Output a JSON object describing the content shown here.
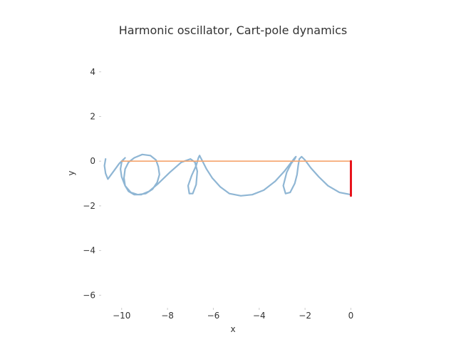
{
  "chart_data": {
    "type": "line",
    "title": "Harmonic oscillator, Cart-pole dynamics",
    "xlabel": "x",
    "ylabel": "y",
    "xlim": [
      -10.8,
      0.7
    ],
    "ylim": [
      -6.5,
      5.3
    ],
    "xticks": [
      -10,
      -8,
      -6,
      -4,
      -2,
      0
    ],
    "yticks": [
      -6,
      -4,
      -2,
      0,
      2,
      4
    ],
    "tick_labels_x": [
      "−10",
      "−8",
      "−6",
      "−4",
      "−2",
      "0"
    ],
    "tick_labels_y": [
      "−6",
      "−4",
      "−2",
      "0",
      "2",
      "4"
    ],
    "grid": false,
    "series": [
      {
        "role": "trajectory",
        "color": "#8fb6d4",
        "x": [
          0.0,
          -0.5,
          -1.0,
          -1.4,
          -1.75,
          -2.0,
          -2.15,
          -2.25,
          -2.3,
          -2.35,
          -2.45,
          -2.65,
          -2.85,
          -2.95,
          -2.8,
          -2.6,
          -2.45,
          -2.4,
          -2.45,
          -2.6,
          -2.9,
          -3.3,
          -3.8,
          -4.3,
          -4.8,
          -5.3,
          -5.7,
          -6.05,
          -6.3,
          -6.45,
          -6.55,
          -6.6,
          -6.65,
          -6.75,
          -6.95,
          -7.1,
          -7.05,
          -6.9,
          -6.75,
          -6.7,
          -6.8,
          -7.0,
          -7.4,
          -7.9,
          -8.4,
          -8.8,
          -9.15,
          -9.45,
          -9.7,
          -9.85,
          -9.9,
          -9.85,
          -9.7,
          -9.45,
          -9.1,
          -8.75,
          -8.5,
          -8.4,
          -8.35,
          -8.45,
          -8.65,
          -8.95,
          -9.3,
          -9.6,
          -9.85,
          -10.0,
          -10.05,
          -10.0,
          -9.9,
          -9.85,
          -9.9,
          -10.1,
          -10.35,
          -10.6,
          -10.7,
          -10.75,
          -10.7
        ],
        "y": [
          -1.5,
          -1.4,
          -1.1,
          -0.7,
          -0.3,
          0.05,
          0.2,
          0.1,
          -0.2,
          -0.6,
          -1.0,
          -1.4,
          -1.45,
          -1.1,
          -0.5,
          -0.1,
          0.1,
          0.2,
          0.15,
          -0.05,
          -0.45,
          -0.9,
          -1.3,
          -1.5,
          -1.55,
          -1.45,
          -1.15,
          -0.75,
          -0.35,
          -0.05,
          0.15,
          0.25,
          0.15,
          -0.2,
          -0.65,
          -1.1,
          -1.45,
          -1.45,
          -1.05,
          -0.45,
          -0.05,
          0.1,
          -0.05,
          -0.5,
          -1.0,
          -1.35,
          -1.5,
          -1.5,
          -1.35,
          -1.1,
          -0.75,
          -0.35,
          -0.05,
          0.15,
          0.3,
          0.25,
          0.05,
          -0.25,
          -0.6,
          -0.95,
          -1.25,
          -1.45,
          -1.5,
          -1.4,
          -1.1,
          -0.7,
          -0.35,
          -0.05,
          0.1,
          0.15,
          0.1,
          -0.1,
          -0.45,
          -0.8,
          -0.55,
          -0.2,
          0.1
        ]
      },
      {
        "role": "cart-track",
        "color": "#f5a46c",
        "x": [
          -10.0,
          0.0
        ],
        "y": [
          0.0,
          0.0
        ]
      },
      {
        "role": "pole",
        "color": "#e8141c",
        "x": [
          0.0,
          0.0
        ],
        "y": [
          0.0,
          -1.55
        ]
      }
    ]
  }
}
